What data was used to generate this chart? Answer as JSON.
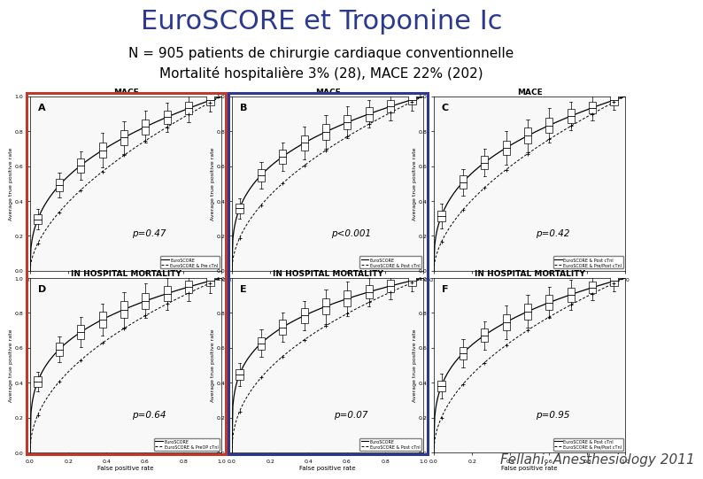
{
  "title": "EuroSCORE et Troponine Ic",
  "subtitle1": "N = 905 patients de chirurgie cardiaque conventionnelle",
  "subtitle2": "Mortalité hospitalière 3% (28), MACE 22% (202)",
  "citation": "Fellahi, Anesthesiology 2011",
  "title_color": "#2B3990",
  "subtitle_color": "#000000",
  "citation_color": "#444444",
  "bg_color": "#FFFFFF",
  "panels": [
    {
      "label": "A",
      "title": "MACE",
      "p_val": "p=0.47",
      "row": 0,
      "col": 0,
      "curve_exp": 0.38,
      "dash_exp": 0.58,
      "legend1": "EuroSCORE",
      "legend2": "EuroSCORE & Pre cTnI"
    },
    {
      "label": "B",
      "title": "MACE",
      "p_val": "p<0.001",
      "row": 0,
      "col": 1,
      "curve_exp": 0.32,
      "dash_exp": 0.52,
      "legend1": "EuroSCORE",
      "legend2": "EuroSCORE & Post cTnI"
    },
    {
      "label": "C",
      "title": "MACE",
      "p_val": "p=0.42",
      "row": 0,
      "col": 2,
      "curve_exp": 0.36,
      "dash_exp": 0.56,
      "legend1": "EuroSCORE & Post cTnI",
      "legend2": "EuroSCORE & Pre/Post cTnI"
    },
    {
      "label": "D",
      "title": "IN HOSPITAL MORTALITY",
      "p_val": "p=0.64",
      "row": 1,
      "col": 0,
      "curve_exp": 0.28,
      "dash_exp": 0.48,
      "legend1": "EuroSCORE",
      "legend2": "EuroSCORE & PreOP cTnI"
    },
    {
      "label": "E",
      "title": "IN HOSPITAL MORTALITY",
      "p_val": "p=0.07",
      "row": 1,
      "col": 1,
      "curve_exp": 0.25,
      "dash_exp": 0.45,
      "legend1": "EuroSCORE",
      "legend2": "EuroSCORE & Post cTnI"
    },
    {
      "label": "F",
      "title": "IN HOSPITAL MORTALITY",
      "p_val": "p=0.95",
      "row": 1,
      "col": 2,
      "curve_exp": 0.3,
      "dash_exp": 0.5,
      "legend1": "EuroSCORE & Post cTnI",
      "legend2": "EuroSCORE & Pre/Post cTnI"
    }
  ],
  "border_colors": [
    "#C0392B",
    "#2B3990",
    "none"
  ],
  "title_fontsize": 22,
  "subtitle_fontsize": 11,
  "panel_title_fontsize": 6.5,
  "panel_label_fontsize": 8,
  "pval_fontsize": 7.5,
  "citation_fontsize": 11
}
